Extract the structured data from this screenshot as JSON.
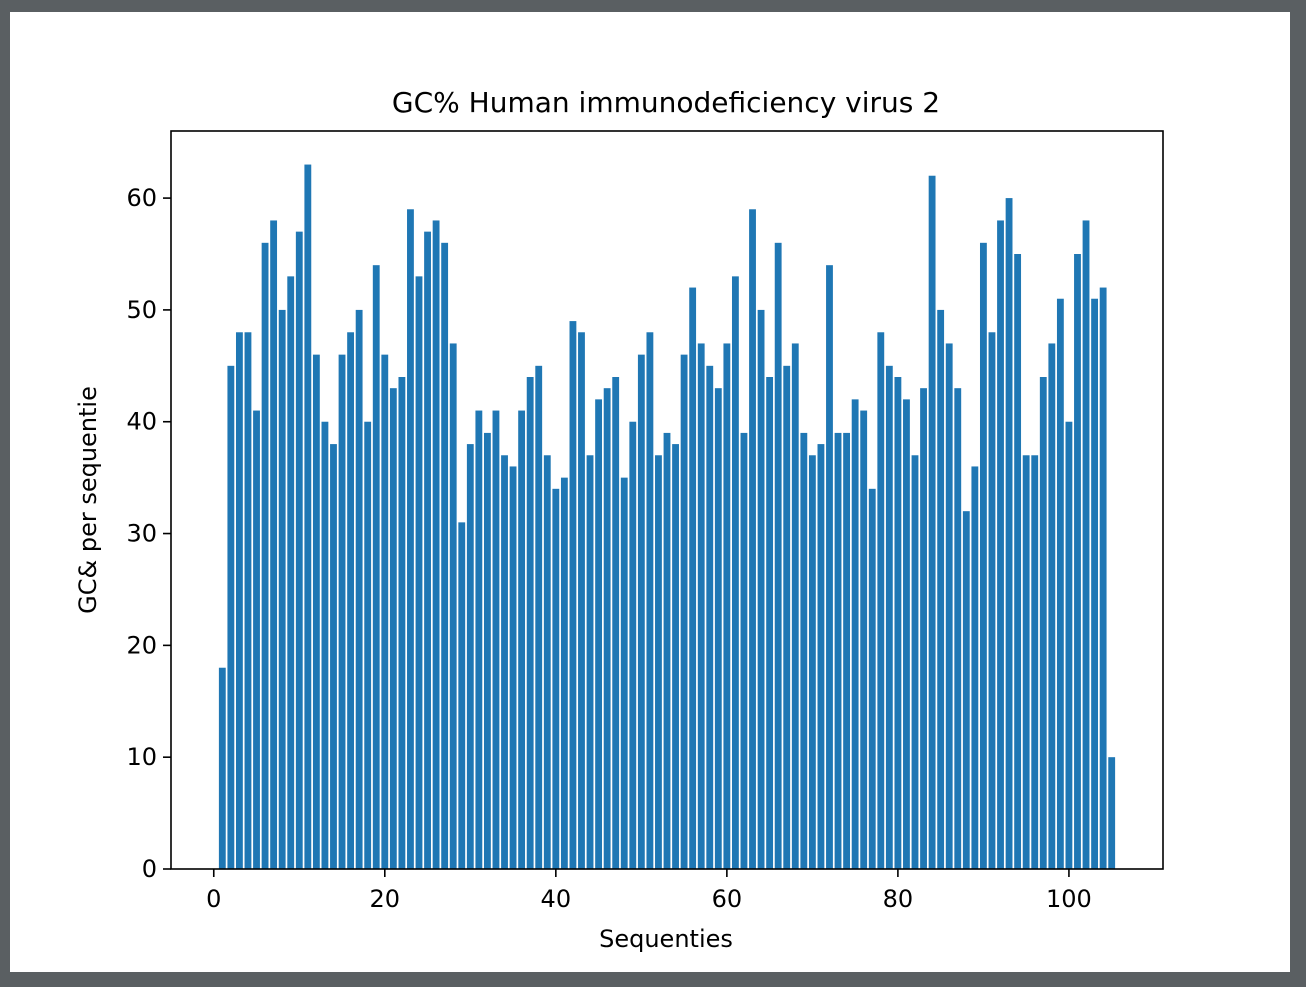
{
  "window": {
    "background": "#ffffff",
    "frame_color": "#5a5f62"
  },
  "chart_data": {
    "type": "bar",
    "title": "GC% Human immunodeficiency virus 2",
    "xlabel": "Sequenties",
    "ylabel": "GC& per sequentie",
    "bar_color": "#1f77b4",
    "xlim": [
      -5,
      111
    ],
    "ylim": [
      0,
      66
    ],
    "xticks": [
      0,
      20,
      40,
      60,
      80,
      100
    ],
    "yticks": [
      0,
      10,
      20,
      30,
      40,
      50,
      60
    ],
    "grid": false,
    "x": [
      1,
      2,
      3,
      4,
      5,
      6,
      7,
      8,
      9,
      10,
      11,
      12,
      13,
      14,
      15,
      16,
      17,
      18,
      19,
      20,
      21,
      22,
      23,
      24,
      25,
      26,
      27,
      28,
      29,
      30,
      31,
      32,
      33,
      34,
      35,
      36,
      37,
      38,
      39,
      40,
      41,
      42,
      43,
      44,
      45,
      46,
      47,
      48,
      49,
      50,
      51,
      52,
      53,
      54,
      55,
      56,
      57,
      58,
      59,
      60,
      61,
      62,
      63,
      64,
      65,
      66,
      67,
      68,
      69,
      70,
      71,
      72,
      73,
      74,
      75,
      76,
      77,
      78,
      79,
      80,
      81,
      82,
      83,
      84,
      85,
      86,
      87,
      88,
      89,
      90,
      91,
      92,
      93,
      94,
      95,
      96,
      97,
      98,
      99,
      100,
      101,
      102,
      103,
      104,
      105
    ],
    "values": [
      18,
      45,
      48,
      48,
      41,
      56,
      58,
      50,
      53,
      57,
      63,
      46,
      40,
      38,
      46,
      48,
      50,
      40,
      54,
      46,
      43,
      44,
      59,
      53,
      57,
      58,
      56,
      47,
      31,
      38,
      41,
      39,
      41,
      37,
      36,
      41,
      44,
      45,
      37,
      34,
      35,
      49,
      48,
      37,
      42,
      43,
      44,
      35,
      40,
      46,
      48,
      37,
      39,
      38,
      46,
      52,
      47,
      45,
      43,
      47,
      53,
      39,
      59,
      50,
      44,
      56,
      45,
      47,
      39,
      37,
      38,
      54,
      39,
      39,
      42,
      41,
      34,
      48,
      45,
      44,
      42,
      37,
      43,
      62,
      50,
      47,
      43,
      32,
      36,
      56,
      48,
      58,
      60,
      55,
      37,
      37,
      44,
      47,
      51,
      40,
      55,
      58,
      51,
      52,
      10
    ]
  }
}
